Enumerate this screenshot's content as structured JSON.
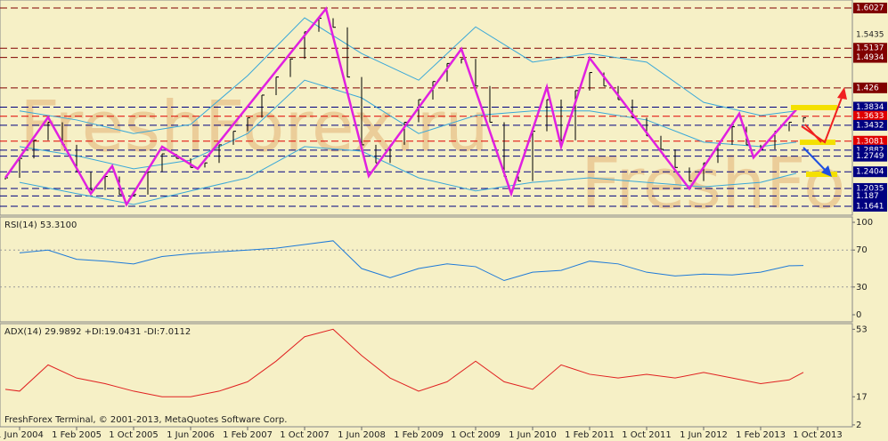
{
  "chart_data": [
    {
      "type": "price",
      "x": [
        -2,
        0,
        2,
        4,
        6,
        8,
        10,
        12,
        14,
        16,
        18,
        20,
        22,
        24,
        26,
        28,
        30,
        32,
        34,
        36,
        38,
        40,
        42,
        44,
        46,
        48,
        50,
        52,
        54,
        56,
        58,
        60,
        62,
        64,
        66,
        68,
        70,
        72,
        74,
        76,
        78,
        80,
        82,
        84,
        86,
        88,
        90,
        92,
        94,
        96,
        98,
        100,
        102,
        104,
        106,
        108,
        110
      ],
      "values": [
        1.227,
        1.27,
        1.31,
        1.35,
        1.3,
        1.24,
        1.2,
        1.23,
        1.19,
        1.19,
        1.24,
        1.28,
        1.27,
        1.25,
        1.26,
        1.3,
        1.33,
        1.36,
        1.41,
        1.45,
        1.49,
        1.55,
        1.58,
        1.56,
        1.45,
        1.3,
        1.26,
        1.3,
        1.35,
        1.4,
        1.44,
        1.48,
        1.49,
        1.43,
        1.35,
        1.23,
        1.22,
        1.33,
        1.4,
        1.31,
        1.42,
        1.46,
        1.43,
        1.4,
        1.36,
        1.32,
        1.29,
        1.25,
        1.22,
        1.26,
        1.3,
        1.34,
        1.3,
        1.29,
        1.33,
        1.35,
        1.36
      ],
      "color": "#000000",
      "zigzag": {
        "color": "#e020e0",
        "x": [
          -2,
          4,
          10,
          13,
          15,
          20,
          25,
          43,
          49,
          62,
          69,
          74,
          76,
          80,
          94,
          101,
          103,
          109
        ],
        "values": [
          1.227,
          1.361,
          1.192,
          1.253,
          1.168,
          1.296,
          1.247,
          1.601,
          1.231,
          1.512,
          1.192,
          1.428,
          1.296,
          1.492,
          1.203,
          1.369,
          1.272,
          1.378
        ]
      },
      "bands": {
        "color": "#3aa8d8",
        "x": [
          0,
          8,
          16,
          24,
          32,
          40,
          48,
          56,
          64,
          72,
          80,
          88,
          96,
          104,
          109
        ],
        "series": [
          {
            "values": [
              1.375,
              1.355,
              1.325,
              1.345,
              1.453,
              1.581,
              1.502,
              1.443,
              1.561,
              1.483,
              1.502,
              1.483,
              1.394,
              1.365,
              1.375
            ]
          },
          {
            "values": [
              1.296,
              1.276,
              1.247,
              1.266,
              1.325,
              1.443,
              1.404,
              1.325,
              1.365,
              1.375,
              1.375,
              1.355,
              1.306,
              1.296,
              1.306
            ]
          },
          {
            "values": [
              1.217,
              1.192,
              1.168,
              1.198,
              1.227,
              1.296,
              1.286,
              1.227,
              1.198,
              1.217,
              1.227,
              1.217,
              1.207,
              1.217,
              1.237
            ]
          }
        ]
      },
      "xlim": [
        -2.75,
        116.875
      ],
      "ylim": [
        1.1444,
        1.6204
      ],
      "yticks": [
        1.6027,
        1.5435,
        1.5137,
        1.4934,
        1.426,
        1.3834,
        1.3633,
        1.3432,
        1.3081,
        1.2882,
        1.2749,
        1.2404,
        1.2035,
        1.187,
        1.1641
      ],
      "level_colors": [
        "#800000",
        "none",
        "#800000",
        "#800000",
        "#800000",
        "#000080",
        "#e00000",
        "#000080",
        "#e00000",
        "#000080",
        "#000080",
        "#000080",
        "#000080",
        "#000080",
        "#000080"
      ],
      "watermarks": [
        "FreshForex.ru",
        "FreshFo"
      ]
    },
    {
      "type": "line",
      "title": "RSI(14) 53.3100",
      "color": "#1e7ad8",
      "x": [
        0,
        4,
        8,
        12,
        16,
        20,
        24,
        28,
        32,
        36,
        40,
        44,
        48,
        52,
        56,
        60,
        64,
        68,
        72,
        76,
        80,
        84,
        88,
        92,
        96,
        100,
        104,
        108,
        110
      ],
      "values": [
        67,
        70,
        60,
        58,
        55,
        63,
        66,
        68,
        70,
        72,
        76,
        80,
        50,
        40,
        50,
        55,
        52,
        37,
        46,
        48,
        58,
        55,
        46,
        42,
        44,
        43,
        46,
        53,
        53.31
      ],
      "ylim": [
        -7.7,
        105.8
      ],
      "yticks": [
        100,
        70,
        30,
        0
      ],
      "levels": [
        70,
        30
      ]
    },
    {
      "type": "line",
      "title": "ADX(14) 29.9892 +DI:19.0431 -DI:7.0112",
      "color": "#e02020",
      "x": [
        -2,
        0,
        4,
        8,
        12,
        16,
        20,
        24,
        28,
        32,
        36,
        40,
        44,
        48,
        52,
        56,
        60,
        64,
        68,
        72,
        76,
        80,
        84,
        88,
        92,
        96,
        100,
        104,
        108,
        110
      ],
      "values": [
        21,
        20,
        34,
        27,
        24,
        20,
        17,
        17,
        20,
        25,
        36,
        49,
        53,
        39,
        27,
        20,
        25,
        36,
        25,
        21,
        34,
        29,
        27,
        29,
        27,
        30,
        27,
        24,
        26,
        29.99
      ],
      "ylim": [
        1,
        56
      ],
      "yticks": [
        53,
        17,
        2
      ],
      "xticks": [
        {
          "value": 0,
          "label": "1 Jun 2004"
        },
        {
          "value": 8,
          "label": "1 Feb 2005"
        },
        {
          "value": 16,
          "label": "1 Oct 2005"
        },
        {
          "value": 24,
          "label": "1 Jun 2006"
        },
        {
          "value": 32,
          "label": "1 Feb 2007"
        },
        {
          "value": 40,
          "label": "1 Oct 2007"
        },
        {
          "value": 48,
          "label": "1 Jun 2008"
        },
        {
          "value": 56,
          "label": "1 Feb 2009"
        },
        {
          "value": 64,
          "label": "1 Oct 2009"
        },
        {
          "value": 72,
          "label": "1 Jun 2010"
        },
        {
          "value": 80,
          "label": "1 Feb 2011"
        },
        {
          "value": 88,
          "label": "1 Oct 2011"
        },
        {
          "value": 96,
          "label": "1 Jun 2012"
        },
        {
          "value": 104,
          "label": "1 Feb 2013"
        },
        {
          "value": 112,
          "label": "1 Oct 2013"
        }
      ],
      "footer": "FreshForex Terminal, © 2001-2013, MetaQuotes Software Corp."
    }
  ]
}
